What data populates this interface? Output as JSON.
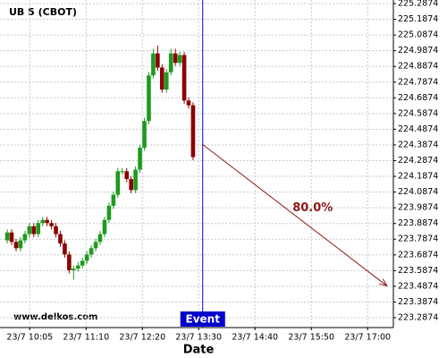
{
  "chart_data": {
    "type": "candlestick",
    "title": "UB 5 (CBOT)",
    "xlabel": "Date",
    "watermark": "www.delkos.com",
    "up_color": "#1e9a1e",
    "down_color": "#8b0000",
    "x": [
      577,
      582.5,
      588,
      593.5,
      599,
      604.5,
      610,
      615.5,
      621,
      626.5,
      632,
      637.5,
      643,
      648.5,
      654,
      659.5,
      665,
      670.5,
      676,
      681.5,
      687,
      692.5,
      698,
      703.5,
      709,
      714.5,
      720,
      725.5,
      731,
      736.5,
      742,
      747.5,
      753,
      758.5,
      764,
      769.5,
      775,
      780.5,
      786,
      791.5,
      797,
      802.5,
      808
    ],
    "open": [
      223.78,
      223.83,
      223.77,
      223.73,
      223.78,
      223.82,
      223.87,
      223.82,
      223.89,
      223.91,
      223.89,
      223.87,
      223.82,
      223.76,
      223.69,
      223.59,
      223.6,
      223.62,
      223.65,
      223.69,
      223.73,
      223.77,
      223.82,
      223.91,
      224.0,
      224.07,
      224.22,
      224.22,
      224.17,
      224.1,
      224.23,
      224.37,
      224.54,
      224.83,
      224.97,
      224.88,
      224.74,
      224.85,
      224.97,
      224.91,
      224.96,
      224.67,
      224.64
    ],
    "high": [
      223.85,
      223.85,
      223.79,
      223.8,
      223.84,
      223.89,
      223.89,
      223.91,
      223.93,
      223.93,
      223.91,
      223.89,
      223.84,
      223.78,
      223.71,
      223.62,
      223.64,
      223.67,
      223.71,
      223.75,
      223.79,
      223.84,
      223.93,
      224.02,
      224.09,
      224.24,
      224.24,
      224.24,
      224.19,
      224.25,
      224.39,
      224.56,
      224.85,
      225.0,
      225.02,
      224.9,
      224.87,
      225.0,
      225.0,
      224.98,
      224.98,
      224.69,
      224.66
    ],
    "low": [
      223.76,
      223.75,
      223.71,
      223.71,
      223.76,
      223.8,
      223.8,
      223.8,
      223.87,
      223.87,
      223.85,
      223.8,
      223.74,
      223.67,
      223.57,
      223.53,
      223.58,
      223.6,
      223.63,
      223.67,
      223.71,
      223.75,
      223.8,
      223.89,
      223.98,
      224.05,
      224.2,
      224.15,
      224.08,
      224.08,
      224.21,
      224.35,
      224.52,
      224.81,
      224.86,
      224.72,
      224.72,
      224.83,
      224.89,
      224.89,
      224.65,
      224.62,
      224.29
    ],
    "close": [
      223.83,
      223.77,
      223.73,
      223.78,
      223.82,
      223.87,
      223.82,
      223.89,
      223.91,
      223.89,
      223.87,
      223.82,
      223.76,
      223.69,
      223.59,
      223.6,
      223.62,
      223.65,
      223.69,
      223.73,
      223.77,
      223.82,
      223.91,
      224.0,
      224.07,
      224.22,
      224.22,
      224.17,
      224.1,
      224.23,
      224.37,
      224.54,
      224.83,
      224.97,
      224.88,
      224.74,
      224.85,
      224.97,
      224.91,
      224.96,
      224.67,
      224.64,
      224.31
    ],
    "xlim": [
      568,
      1057
    ],
    "xticks": [
      {
        "value": 605,
        "label": "23/7 10:05"
      },
      {
        "value": 675,
        "label": "23/7 11:10"
      },
      {
        "value": 745,
        "label": "23/7 12:20"
      },
      {
        "value": 815,
        "label": "23/7 13:30"
      },
      {
        "value": 885,
        "label": "23/7 14:40"
      },
      {
        "value": 955,
        "label": "23/7 15:50"
      },
      {
        "value": 1025,
        "label": "23/7 17:00"
      }
    ],
    "ylim": [
      223.2247,
      225.3102
    ],
    "yticks": [
      225.2874,
      225.1874,
      225.0874,
      224.9874,
      224.8874,
      224.7874,
      224.6874,
      224.5874,
      224.4874,
      224.3874,
      224.2874,
      224.1874,
      224.0874,
      223.9874,
      223.8874,
      223.7874,
      223.6874,
      223.5874,
      223.4874,
      223.3874,
      223.2874
    ],
    "grid": true,
    "event": {
      "label": "Event",
      "x": 820,
      "color": "#0000cc"
    },
    "annotation": {
      "text": "80.0%",
      "x_start": 820,
      "y_start": 224.39,
      "x_end": 1049,
      "y_end": 223.49,
      "color": "#8b1a1a"
    }
  }
}
